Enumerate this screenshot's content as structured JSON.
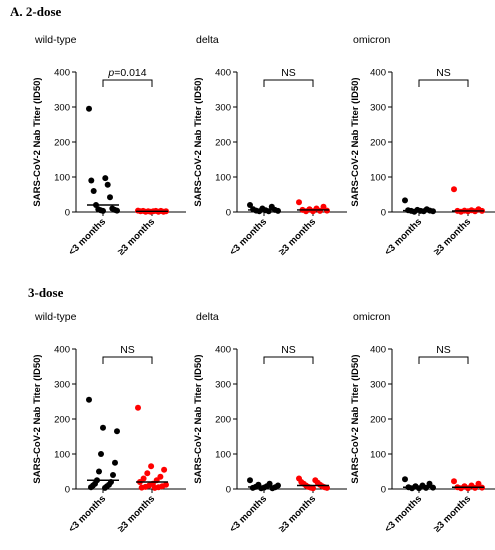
{
  "sections": [
    {
      "title": "A.  2-dose"
    },
    {
      "title": "3-dose"
    }
  ],
  "chart_data": [
    {
      "type": "scatter",
      "section": "A.  2-dose",
      "title": "wild-type",
      "ylabel": "SARS-CoV-2 Nab Titer (ID50)",
      "ylim": [
        0,
        400
      ],
      "yticks": [
        0,
        100,
        200,
        300,
        400
      ],
      "categories": [
        "<3 months",
        "≥3 months"
      ],
      "annotation": {
        "italic": "p",
        "text": "=0.014"
      },
      "series": [
        {
          "category": "<3 months",
          "color": "#000000",
          "values": [
            295,
            97,
            90,
            78,
            60,
            42,
            20,
            10,
            8,
            6,
            5,
            4,
            3
          ]
        },
        {
          "category": "≥3 months",
          "color": "#ff0000",
          "values": [
            4,
            3,
            3,
            3,
            2,
            2,
            2,
            2,
            1,
            1,
            1,
            1
          ]
        }
      ]
    },
    {
      "type": "scatter",
      "section": "A.  2-dose",
      "title": "delta",
      "ylabel": "SARS-CoV-2 Nab Titer (ID50)",
      "ylim": [
        0,
        400
      ],
      "yticks": [
        0,
        100,
        200,
        300,
        400
      ],
      "categories": [
        "<3 months",
        "≥3 months"
      ],
      "annotation": {
        "italic": "",
        "text": "NS"
      },
      "series": [
        {
          "category": "<3 months",
          "color": "#000000",
          "values": [
            20,
            15,
            10,
            8,
            6,
            5,
            4,
            3,
            2,
            2
          ]
        },
        {
          "category": "≥3 months",
          "color": "#ff0000",
          "values": [
            28,
            15,
            10,
            8,
            6,
            4,
            3,
            2,
            2
          ]
        }
      ]
    },
    {
      "type": "scatter",
      "section": "A.  2-dose",
      "title": "omicron",
      "ylabel": "SARS-CoV-2 Nab Titer (ID50)",
      "ylim": [
        0,
        400
      ],
      "yticks": [
        0,
        100,
        200,
        300,
        400
      ],
      "categories": [
        "<3 months",
        "≥3 months"
      ],
      "annotation": {
        "italic": "",
        "text": "NS"
      },
      "series": [
        {
          "category": "<3 months",
          "color": "#000000",
          "values": [
            33,
            8,
            6,
            5,
            4,
            3,
            3,
            2,
            2,
            1
          ]
        },
        {
          "category": "≥3 months",
          "color": "#ff0000",
          "values": [
            65,
            8,
            5,
            4,
            3,
            3,
            2,
            2,
            1
          ]
        }
      ]
    },
    {
      "type": "scatter",
      "section": "3-dose",
      "title": "wild-type",
      "ylabel": "SARS-CoV-2 Nab Titer (ID50)",
      "ylim": [
        0,
        400
      ],
      "yticks": [
        0,
        100,
        200,
        300,
        400
      ],
      "categories": [
        "<3 months",
        "≥3 months"
      ],
      "annotation": {
        "italic": "",
        "text": "NS"
      },
      "series": [
        {
          "category": "<3 months",
          "color": "#000000",
          "values": [
            255,
            175,
            165,
            100,
            75,
            50,
            40,
            25,
            20,
            15,
            12,
            10,
            8,
            5,
            3
          ]
        },
        {
          "category": "≥3 months",
          "color": "#ff0000",
          "values": [
            232,
            65,
            55,
            45,
            35,
            30,
            25,
            20,
            15,
            12,
            10,
            8,
            6,
            5,
            4,
            3
          ]
        }
      ]
    },
    {
      "type": "scatter",
      "section": "3-dose",
      "title": "delta",
      "ylabel": "SARS-CoV-2 Nab Titer (ID50)",
      "ylim": [
        0,
        400
      ],
      "yticks": [
        0,
        100,
        200,
        300,
        400
      ],
      "categories": [
        "<3 months",
        "≥3 months"
      ],
      "annotation": {
        "italic": "",
        "text": "NS"
      },
      "series": [
        {
          "category": "<3 months",
          "color": "#000000",
          "values": [
            25,
            15,
            12,
            10,
            8,
            6,
            5,
            4,
            3,
            2,
            2
          ]
        },
        {
          "category": "≥3 months",
          "color": "#ff0000",
          "values": [
            30,
            25,
            20,
            18,
            15,
            12,
            10,
            8,
            6,
            5,
            4,
            3,
            2
          ]
        }
      ]
    },
    {
      "type": "scatter",
      "section": "3-dose",
      "title": "omicron",
      "ylabel": "SARS-CoV-2 Nab Titer (ID50)",
      "ylim": [
        0,
        400
      ],
      "yticks": [
        0,
        100,
        200,
        300,
        400
      ],
      "categories": [
        "<3 months",
        "≥3 months"
      ],
      "annotation": {
        "italic": "",
        "text": "NS"
      },
      "series": [
        {
          "category": "<3 months",
          "color": "#000000",
          "values": [
            28,
            15,
            10,
            8,
            5,
            4,
            3,
            2,
            2
          ]
        },
        {
          "category": "≥3 months",
          "color": "#ff0000",
          "values": [
            22,
            15,
            10,
            8,
            5,
            4,
            3,
            2,
            2
          ]
        }
      ]
    }
  ]
}
